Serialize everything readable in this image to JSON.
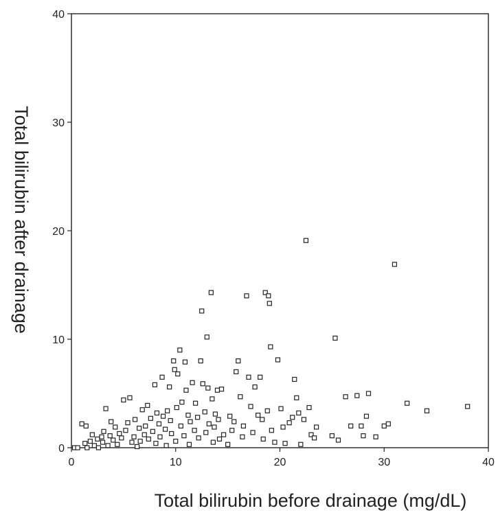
{
  "chart_data": {
    "type": "scatter",
    "title": "",
    "xlabel": "Total bilirubin before drainage (mg/dL)",
    "ylabel": "Total bilirubin after drainage",
    "xlim": [
      0,
      40
    ],
    "ylim": [
      0,
      40
    ],
    "xticks": [
      0,
      10,
      20,
      30,
      40
    ],
    "yticks": [
      0,
      10,
      20,
      30,
      40
    ],
    "grid": false,
    "legend": "none",
    "marker": "open-square",
    "series": [
      {
        "points": [
          [
            0.3,
            0.0
          ],
          [
            0.6,
            0.0
          ],
          [
            1.0,
            2.2
          ],
          [
            1.4,
            2.0
          ],
          [
            1.3,
            0.4
          ],
          [
            1.5,
            0.0
          ],
          [
            1.8,
            0.6
          ],
          [
            2.0,
            1.2
          ],
          [
            2.2,
            0.2
          ],
          [
            2.5,
            0.8
          ],
          [
            2.6,
            0.0
          ],
          [
            2.9,
            1.0
          ],
          [
            3.0,
            0.5
          ],
          [
            3.1,
            1.5
          ],
          [
            3.3,
            3.6
          ],
          [
            3.5,
            0.2
          ],
          [
            3.7,
            1.1
          ],
          [
            3.8,
            2.4
          ],
          [
            4.0,
            0.7
          ],
          [
            4.2,
            1.9
          ],
          [
            4.4,
            0.3
          ],
          [
            4.6,
            1.3
          ],
          [
            4.8,
            0.9
          ],
          [
            5.0,
            4.4
          ],
          [
            5.2,
            1.6
          ],
          [
            5.4,
            2.3
          ],
          [
            5.6,
            4.6
          ],
          [
            5.8,
            0.5
          ],
          [
            6.0,
            1.0
          ],
          [
            6.1,
            2.6
          ],
          [
            6.3,
            0.1
          ],
          [
            6.5,
            1.8
          ],
          [
            6.6,
            0.6
          ],
          [
            6.8,
            3.5
          ],
          [
            7.0,
            1.2
          ],
          [
            7.1,
            2.0
          ],
          [
            7.3,
            3.9
          ],
          [
            7.4,
            0.8
          ],
          [
            7.6,
            2.7
          ],
          [
            7.8,
            1.5
          ],
          [
            8.0,
            5.8
          ],
          [
            8.1,
            0.4
          ],
          [
            8.2,
            3.2
          ],
          [
            8.4,
            2.2
          ],
          [
            8.5,
            1.0
          ],
          [
            8.7,
            6.5
          ],
          [
            8.8,
            2.9
          ],
          [
            9.0,
            1.7
          ],
          [
            9.1,
            0.2
          ],
          [
            9.2,
            3.4
          ],
          [
            9.4,
            5.6
          ],
          [
            9.5,
            2.5
          ],
          [
            9.6,
            1.3
          ],
          [
            9.8,
            8.0
          ],
          [
            9.9,
            7.2
          ],
          [
            10.0,
            0.6
          ],
          [
            10.1,
            3.7
          ],
          [
            10.2,
            6.8
          ],
          [
            10.4,
            9.0
          ],
          [
            10.5,
            2.0
          ],
          [
            10.6,
            4.2
          ],
          [
            10.8,
            1.1
          ],
          [
            10.9,
            7.9
          ],
          [
            11.0,
            5.3
          ],
          [
            11.2,
            3.0
          ],
          [
            11.3,
            0.3
          ],
          [
            11.4,
            2.4
          ],
          [
            11.6,
            6.0
          ],
          [
            11.8,
            1.6
          ],
          [
            11.9,
            4.1
          ],
          [
            12.1,
            2.8
          ],
          [
            12.2,
            0.9
          ],
          [
            12.4,
            8.0
          ],
          [
            12.5,
            12.6
          ],
          [
            12.6,
            5.9
          ],
          [
            12.8,
            3.3
          ],
          [
            12.9,
            1.4
          ],
          [
            13.0,
            10.2
          ],
          [
            13.1,
            5.5
          ],
          [
            13.2,
            2.2
          ],
          [
            13.4,
            14.3
          ],
          [
            13.5,
            4.5
          ],
          [
            13.6,
            0.5
          ],
          [
            13.7,
            1.9
          ],
          [
            13.8,
            3.1
          ],
          [
            14.0,
            5.3
          ],
          [
            14.1,
            2.6
          ],
          [
            14.2,
            0.8
          ],
          [
            14.4,
            5.4
          ],
          [
            14.6,
            1.2
          ],
          [
            15.0,
            0.3
          ],
          [
            15.2,
            2.9
          ],
          [
            15.4,
            1.6
          ],
          [
            15.6,
            2.4
          ],
          [
            15.8,
            7.0
          ],
          [
            16.0,
            8.0
          ],
          [
            16.2,
            4.7
          ],
          [
            16.4,
            1.0
          ],
          [
            16.5,
            2.0
          ],
          [
            16.8,
            14.0
          ],
          [
            17.0,
            6.5
          ],
          [
            17.2,
            3.8
          ],
          [
            17.4,
            1.4
          ],
          [
            17.6,
            5.6
          ],
          [
            17.9,
            3.0
          ],
          [
            18.1,
            6.5
          ],
          [
            18.3,
            2.6
          ],
          [
            18.4,
            0.8
          ],
          [
            18.6,
            14.3
          ],
          [
            18.8,
            3.4
          ],
          [
            18.9,
            14.0
          ],
          [
            19.0,
            13.3
          ],
          [
            19.1,
            9.3
          ],
          [
            19.2,
            1.6
          ],
          [
            19.5,
            0.5
          ],
          [
            19.8,
            8.1
          ],
          [
            20.1,
            3.6
          ],
          [
            20.3,
            1.9
          ],
          [
            20.5,
            0.4
          ],
          [
            20.9,
            2.3
          ],
          [
            21.2,
            2.8
          ],
          [
            21.4,
            6.3
          ],
          [
            21.6,
            4.6
          ],
          [
            21.8,
            3.2
          ],
          [
            22.0,
            0.3
          ],
          [
            22.3,
            2.6
          ],
          [
            22.5,
            19.1
          ],
          [
            22.8,
            3.7
          ],
          [
            23.0,
            1.2
          ],
          [
            23.3,
            0.9
          ],
          [
            23.5,
            1.9
          ],
          [
            25.0,
            1.1
          ],
          [
            25.3,
            10.1
          ],
          [
            25.6,
            0.7
          ],
          [
            26.3,
            4.7
          ],
          [
            26.8,
            2.0
          ],
          [
            27.4,
            4.8
          ],
          [
            27.8,
            2.0
          ],
          [
            28.0,
            1.1
          ],
          [
            28.3,
            2.9
          ],
          [
            28.5,
            5.0
          ],
          [
            29.2,
            1.0
          ],
          [
            30.0,
            2.0
          ],
          [
            30.4,
            2.2
          ],
          [
            31.0,
            16.9
          ],
          [
            32.2,
            4.1
          ],
          [
            34.1,
            3.4
          ],
          [
            38.0,
            3.8
          ]
        ]
      }
    ]
  }
}
